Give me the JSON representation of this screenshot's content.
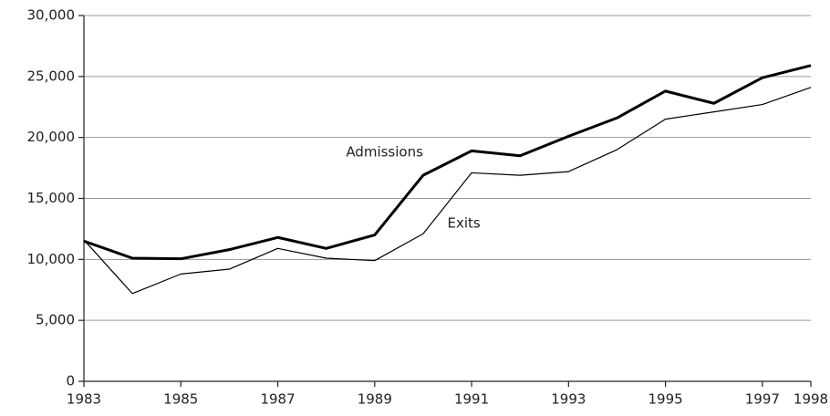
{
  "chart_data": {
    "type": "line",
    "x": [
      1983,
      1984,
      1985,
      1986,
      1987,
      1988,
      1989,
      1990,
      1991,
      1992,
      1993,
      1994,
      1995,
      1996,
      1997,
      1998
    ],
    "series": [
      {
        "name": "Admissions",
        "color": "#000000",
        "values": [
          11500,
          10100,
          10050,
          10800,
          11800,
          10900,
          12000,
          16900,
          18900,
          18500,
          20100,
          21600,
          23800,
          22800,
          24900,
          25900
        ]
      },
      {
        "name": "Exits",
        "color": "#000000",
        "values": [
          11600,
          7200,
          8800,
          9200,
          10900,
          10100,
          9900,
          12100,
          17100,
          16900,
          17200,
          19000,
          21500,
          22100,
          22700,
          24100
        ]
      }
    ],
    "xlim": [
      1983,
      1998
    ],
    "xticks": [
      1983,
      1985,
      1987,
      1989,
      1991,
      1993,
      1995,
      1997,
      1998
    ],
    "ylim": [
      0,
      30000
    ],
    "yticks": [
      0,
      {
        "value": 5000,
        "label": "5,000"
      },
      {
        "value": 10000,
        "label": "10,000"
      },
      {
        "value": 15000,
        "label": "15,000"
      },
      {
        "value": 20000,
        "label": "20,000"
      },
      {
        "value": 25000,
        "label": "25,000"
      },
      {
        "value": 30000,
        "label": "30,000"
      }
    ],
    "grid": true
  }
}
